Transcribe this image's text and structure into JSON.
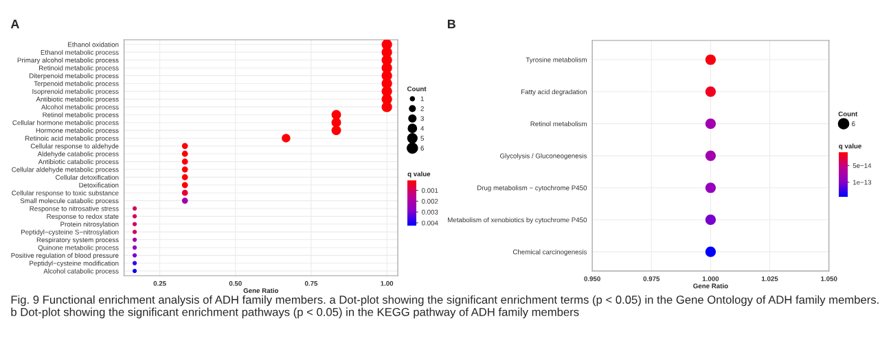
{
  "chart_data": [
    {
      "type": "bubble",
      "title": "A",
      "orientation": "horizontal",
      "xlabel": "Gene Ratio",
      "legend_title": "Count",
      "clabel": "q value",
      "grid": true,
      "categories": [
        "Ethanol oxidation",
        "Ethanol metabolic process",
        "Primary alcohol metabolic process",
        "Retinoid metabolic process",
        "Diterpenoid metabolic process",
        "Terpenoid metabolic process",
        "Isoprenoid metabolic process",
        "Antibiotic metabolic process",
        "Alcohol metabolic process",
        "Retinol metabolic process",
        "Cellular hormone metabolic process",
        "Hormone metabolic process",
        "Retinoic acid metabolic process",
        "Cellular response to aldehyde",
        "Aldehyde catabolic process",
        "Antibiotic catabolic process",
        "Cellular aldehyde metabolic process",
        "Cellular detoxification",
        "Detoxification",
        "Cellular response to toxic substance",
        "Small molecule catabolic process",
        "Response to nitrosative stress",
        "Response to redox state",
        "Protein nitrosylation",
        "Peptidyl−cysteine S−nitrosylation",
        "Respiratory system process",
        "Quinone metabolic process",
        "Positive regulation of blood pressure",
        "Peptidyl−cysteine modification",
        "Alcohol catabolic process"
      ],
      "values": [
        1.0,
        1.0,
        1.0,
        1.0,
        1.0,
        1.0,
        1.0,
        1.0,
        1.0,
        0.833,
        0.833,
        0.833,
        0.667,
        0.333,
        0.333,
        0.333,
        0.333,
        0.333,
        0.333,
        0.333,
        0.333,
        0.167,
        0.167,
        0.167,
        0.167,
        0.167,
        0.167,
        0.167,
        0.167,
        0.167
      ],
      "sizes": [
        6,
        6,
        6,
        6,
        6,
        6,
        6,
        6,
        6,
        5,
        5,
        5,
        4,
        2,
        2,
        2,
        2,
        2,
        2,
        2,
        2,
        1,
        1,
        1,
        1,
        1,
        1,
        1,
        1,
        1
      ],
      "size_legend": [
        1,
        2,
        3,
        4,
        5,
        6
      ],
      "cvalues": [
        0.0001,
        0.0001,
        0.0001,
        0.0001,
        0.0001,
        0.0001,
        0.0001,
        0.0001,
        0.0001,
        0.0001,
        0.0001,
        0.0001,
        0.0001,
        0.0001,
        0.0001,
        0.0001,
        0.0001,
        0.0001,
        0.0001,
        0.0006,
        0.0022,
        0.001,
        0.001,
        0.001,
        0.001,
        0.0022,
        0.0025,
        0.003,
        0.0037,
        0.0042
      ],
      "clim": [
        5e-05,
        0.00425
      ],
      "cticks": [
        0.001,
        0.002,
        0.003,
        0.004
      ],
      "xlim": [
        0.132,
        1.036
      ],
      "xticks": [
        {
          "value": 0.25,
          "label": "0.25"
        },
        {
          "value": 0.5,
          "label": "0.50"
        },
        {
          "value": 0.75,
          "label": "0.75"
        },
        {
          "value": 1.0,
          "label": "1.00"
        }
      ],
      "annotations": [
        "Fig. 9 Functional enrichment analysis of ADH family members. a Dot-plot showing the significant enrichment terms (p < 0.05) in the Gene Ontology of ADH family members. b Dot-plot showing the significant enrichment pathways (p < 0.05) in the KEGG pathway of ADH family members"
      ]
    },
    {
      "type": "bubble",
      "title": "B",
      "orientation": "horizontal",
      "xlabel": "Gene Ratio",
      "legend_title": "Count",
      "clabel": "q value",
      "grid": true,
      "categories": [
        "Tyrosine metabolism",
        "Fatty acid degradation",
        "Retinol metabolism",
        "Glycolysis / Gluconeogenesis",
        "Drug metabolism − cytochrome P450",
        "Metabolism of xenobiotics by cytochrome P450",
        "Chemical carcinogenesis"
      ],
      "values": [
        1.0,
        1.0,
        1.0,
        1.0,
        1.0,
        1.0,
        1.0
      ],
      "sizes": [
        6,
        6,
        6,
        6,
        6,
        6,
        6
      ],
      "size_legend": [
        6
      ],
      "cvalues": [
        1.5e-14,
        2e-14,
        8e-14,
        8e-14,
        9e-14,
        1.05e-13,
        1.44e-13
      ],
      "clim": [
        1e-14,
        1.44e-13
      ],
      "cticks": [
        {
          "value": 5e-14,
          "label": "5e−14"
        },
        {
          "value": 1e-13,
          "label": "1e−13"
        }
      ],
      "xlim": [
        0.95,
        1.05
      ],
      "xticks": [
        {
          "value": 0.95,
          "label": "0.950"
        },
        {
          "value": 0.975,
          "label": "0.975"
        },
        {
          "value": 1.0,
          "label": "1.000"
        },
        {
          "value": 1.025,
          "label": "1.025"
        },
        {
          "value": 1.05,
          "label": "1.050"
        }
      ]
    }
  ]
}
